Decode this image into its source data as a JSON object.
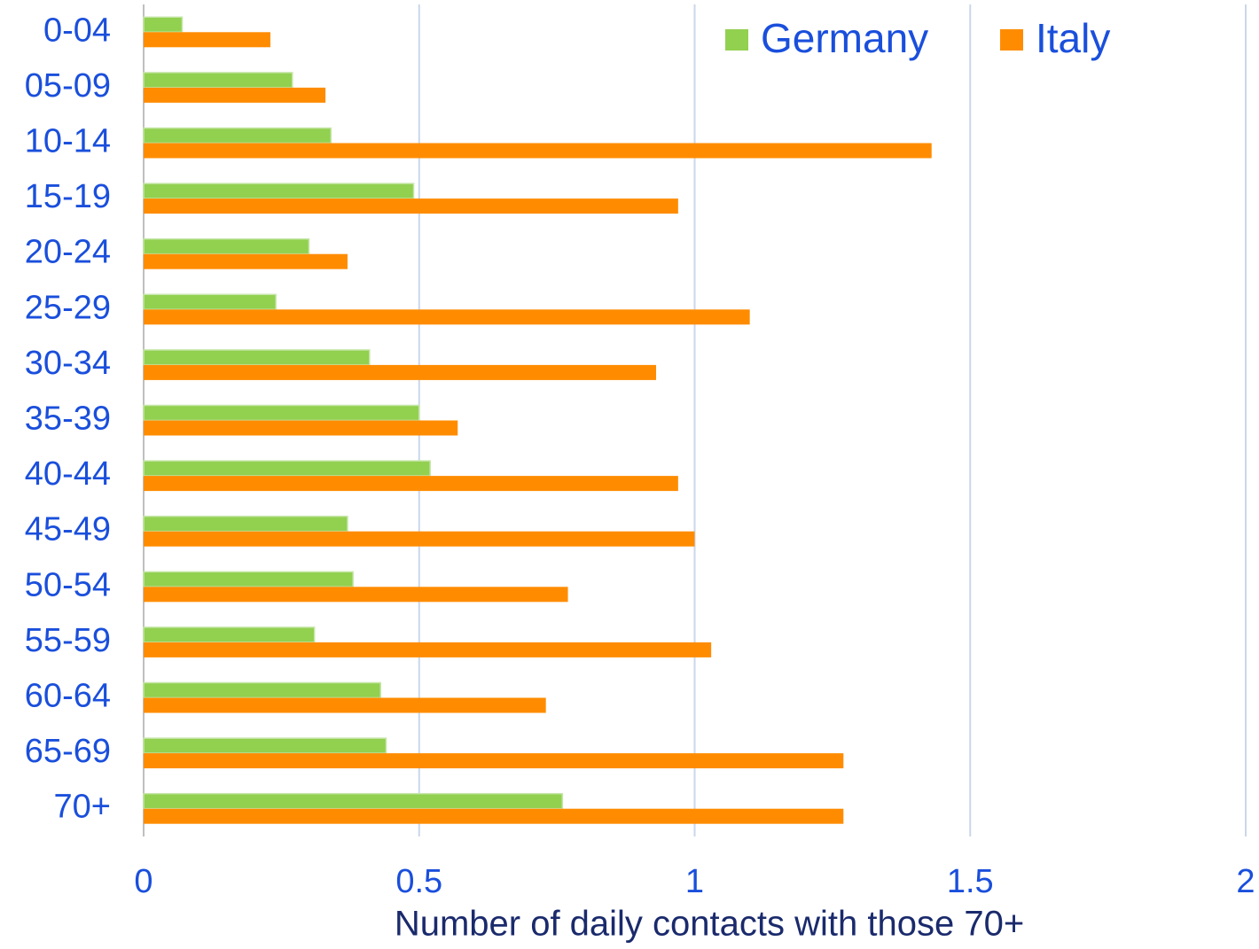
{
  "chart_data": {
    "type": "bar",
    "orientation": "horizontal",
    "x_label": "Number of daily contacts with those 70+",
    "categories": [
      "0-04",
      "05-09",
      "10-14",
      "15-19",
      "20-24",
      "25-29",
      "30-34",
      "35-39",
      "40-44",
      "45-49",
      "50-54",
      "55-59",
      "60-64",
      "65-69",
      "70+"
    ],
    "series": [
      {
        "name": "Germany",
        "color": "#92d050",
        "values": [
          0.07,
          0.27,
          0.34,
          0.49,
          0.3,
          0.24,
          0.41,
          0.5,
          0.52,
          0.37,
          0.38,
          0.31,
          0.43,
          0.44,
          0.76
        ]
      },
      {
        "name": "Italy",
        "color": "#ff8c00",
        "values": [
          0.23,
          0.33,
          1.43,
          0.97,
          0.37,
          1.1,
          0.93,
          0.57,
          0.97,
          1.0,
          0.77,
          1.03,
          0.73,
          1.27,
          1.27
        ]
      }
    ],
    "xlim": [
      0,
      2
    ],
    "xticks": [
      0,
      0.5,
      1,
      1.5,
      2
    ],
    "grid": true,
    "legend": "top-right"
  }
}
